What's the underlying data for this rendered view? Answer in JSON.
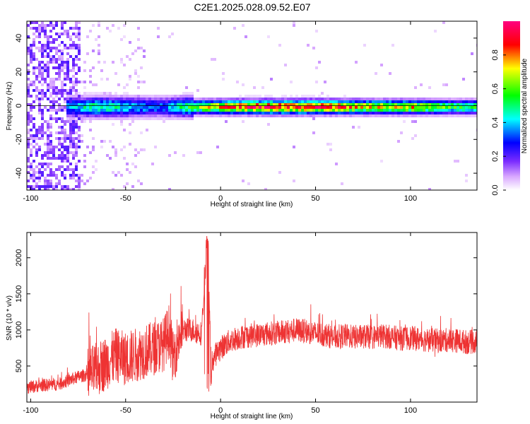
{
  "title": "C2E1.2025.028.09.52.E07",
  "chart_data": [
    {
      "type": "heatmap",
      "xlabel": "Height of straight line (km)",
      "ylabel": "Frequency (Hz)",
      "xlim": [
        -102,
        135
      ],
      "ylim": [
        -50,
        50
      ],
      "x_ticks": [
        -100,
        -50,
        0,
        50,
        100
      ],
      "x_tick_labels": [
        "-100",
        "-50",
        "0",
        "50",
        "100"
      ],
      "y_ticks": [
        -40,
        -20,
        0,
        20,
        40
      ],
      "y_tick_labels": [
        "-40",
        "-20",
        "0",
        "20",
        "40"
      ],
      "grid": false,
      "colorbar": {
        "label": "Normalized spectral amplitude",
        "range": [
          0,
          1
        ],
        "ticks": [
          0.0,
          0.2,
          0.4,
          0.6,
          0.8
        ],
        "tick_labels": [
          "0.0",
          "0.2",
          "0.4",
          "0.6",
          "0.8"
        ],
        "colormap": [
          "#ffffff",
          "#c77dff",
          "#7b2cff",
          "#0000ff",
          "#00ffff",
          "#00ff00",
          "#ffff00",
          "#ff0000",
          "#ff0080"
        ]
      },
      "signal_band": {
        "center_frequency": 0,
        "description_free": true,
        "amplitude_profile": [
          {
            "x": -80,
            "amp": 0.4
          },
          {
            "x": -65,
            "amp": 0.55
          },
          {
            "x": -50,
            "amp": 0.45
          },
          {
            "x": -30,
            "amp": 0.35
          },
          {
            "x": -20,
            "amp": 0.55
          },
          {
            "x": -10,
            "amp": 0.7
          },
          {
            "x": 0,
            "amp": 0.85
          },
          {
            "x": 20,
            "amp": 0.95
          },
          {
            "x": 40,
            "amp": 0.95
          },
          {
            "x": 60,
            "amp": 0.9
          },
          {
            "x": 80,
            "amp": 0.75
          },
          {
            "x": 100,
            "amp": 0.8
          },
          {
            "x": 120,
            "amp": 0.6
          },
          {
            "x": 135,
            "amp": 0.55
          }
        ]
      }
    },
    {
      "type": "line",
      "xlabel": "Height of straight line (km)",
      "ylabel": "SNR (10 * v/v)",
      "xlim": [
        -102,
        135
      ],
      "ylim": [
        0,
        2350
      ],
      "x_ticks": [
        -100,
        -50,
        0,
        50,
        100
      ],
      "x_tick_labels": [
        "-100",
        "-50",
        "0",
        "50",
        "100"
      ],
      "y_ticks": [
        500,
        1000,
        1500,
        2000
      ],
      "y_tick_labels": [
        "500",
        "1000",
        "1500",
        "2000"
      ],
      "grid": false,
      "color": "#ee3333",
      "series": [
        {
          "x": [
            -102,
            -95,
            -90,
            -85,
            -80,
            -75,
            -70,
            -65,
            -60,
            -55,
            -50,
            -45,
            -40,
            -35,
            -30,
            -27,
            -25,
            -22,
            -20,
            -15,
            -10,
            -7,
            -5,
            -3,
            0,
            5,
            10,
            15,
            20,
            25,
            30,
            35,
            40,
            45,
            50,
            55,
            60,
            65,
            70,
            75,
            80,
            85,
            90,
            95,
            100,
            105,
            110,
            115,
            120,
            125,
            130,
            135
          ],
          "y": [
            200,
            230,
            240,
            250,
            300,
            350,
            380,
            450,
            550,
            650,
            600,
            650,
            700,
            750,
            800,
            1000,
            600,
            900,
            1000,
            1000,
            950,
            2300,
            500,
            650,
            750,
            850,
            900,
            920,
            930,
            950,
            960,
            980,
            1000,
            980,
            950,
            930,
            900,
            920,
            900,
            910,
            900,
            920,
            900,
            880,
            890,
            870,
            860,
            850,
            860,
            850,
            830,
            840
          ]
        }
      ]
    }
  ]
}
